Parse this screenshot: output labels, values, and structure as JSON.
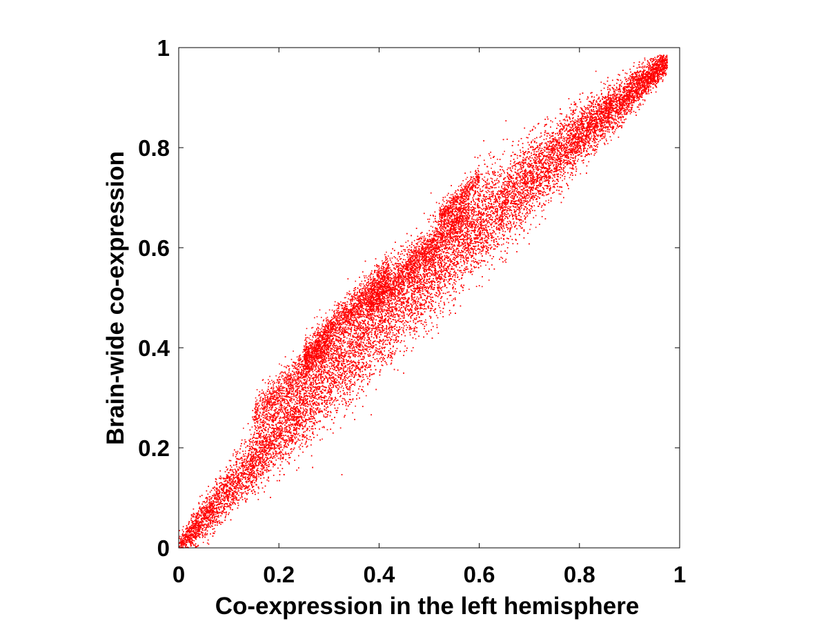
{
  "chart_data": {
    "type": "scatter",
    "title": "",
    "xlabel": "Co-expression in the left hemisphere",
    "ylabel": "Brain-wide co-expression",
    "xlim": [
      0,
      1
    ],
    "ylim": [
      0,
      1
    ],
    "xticks": [
      0,
      0.2,
      0.4,
      0.6,
      0.8,
      1
    ],
    "yticks": [
      0,
      0.2,
      0.4,
      0.6,
      0.8,
      1
    ],
    "xtick_labels": [
      "0",
      "0.2",
      "0.4",
      "0.6",
      "0.8",
      "1"
    ],
    "ytick_labels": [
      "0",
      "0.2",
      "0.4",
      "0.6",
      "0.8",
      "1"
    ],
    "grid": false,
    "legend": null,
    "marker_color": "#ff0000",
    "series": [
      {
        "description": "dense point cloud along the diagonal (approximate representative points)",
        "x": [
          0.01,
          0.02,
          0.03,
          0.05,
          0.07,
          0.1,
          0.12,
          0.15,
          0.18,
          0.2,
          0.22,
          0.25,
          0.28,
          0.3,
          0.32,
          0.35,
          0.38,
          0.4,
          0.42,
          0.45,
          0.48,
          0.5,
          0.52,
          0.55,
          0.58,
          0.6,
          0.62,
          0.65,
          0.68,
          0.7,
          0.72,
          0.75,
          0.78,
          0.8,
          0.82,
          0.85,
          0.88,
          0.9,
          0.92,
          0.95,
          0.97
        ],
        "y": [
          0.01,
          0.025,
          0.035,
          0.06,
          0.08,
          0.12,
          0.14,
          0.18,
          0.21,
          0.23,
          0.26,
          0.29,
          0.32,
          0.34,
          0.37,
          0.39,
          0.42,
          0.44,
          0.46,
          0.49,
          0.52,
          0.53,
          0.56,
          0.58,
          0.61,
          0.63,
          0.65,
          0.67,
          0.7,
          0.72,
          0.74,
          0.76,
          0.79,
          0.8,
          0.83,
          0.85,
          0.88,
          0.9,
          0.92,
          0.95,
          0.97
        ]
      }
    ]
  }
}
